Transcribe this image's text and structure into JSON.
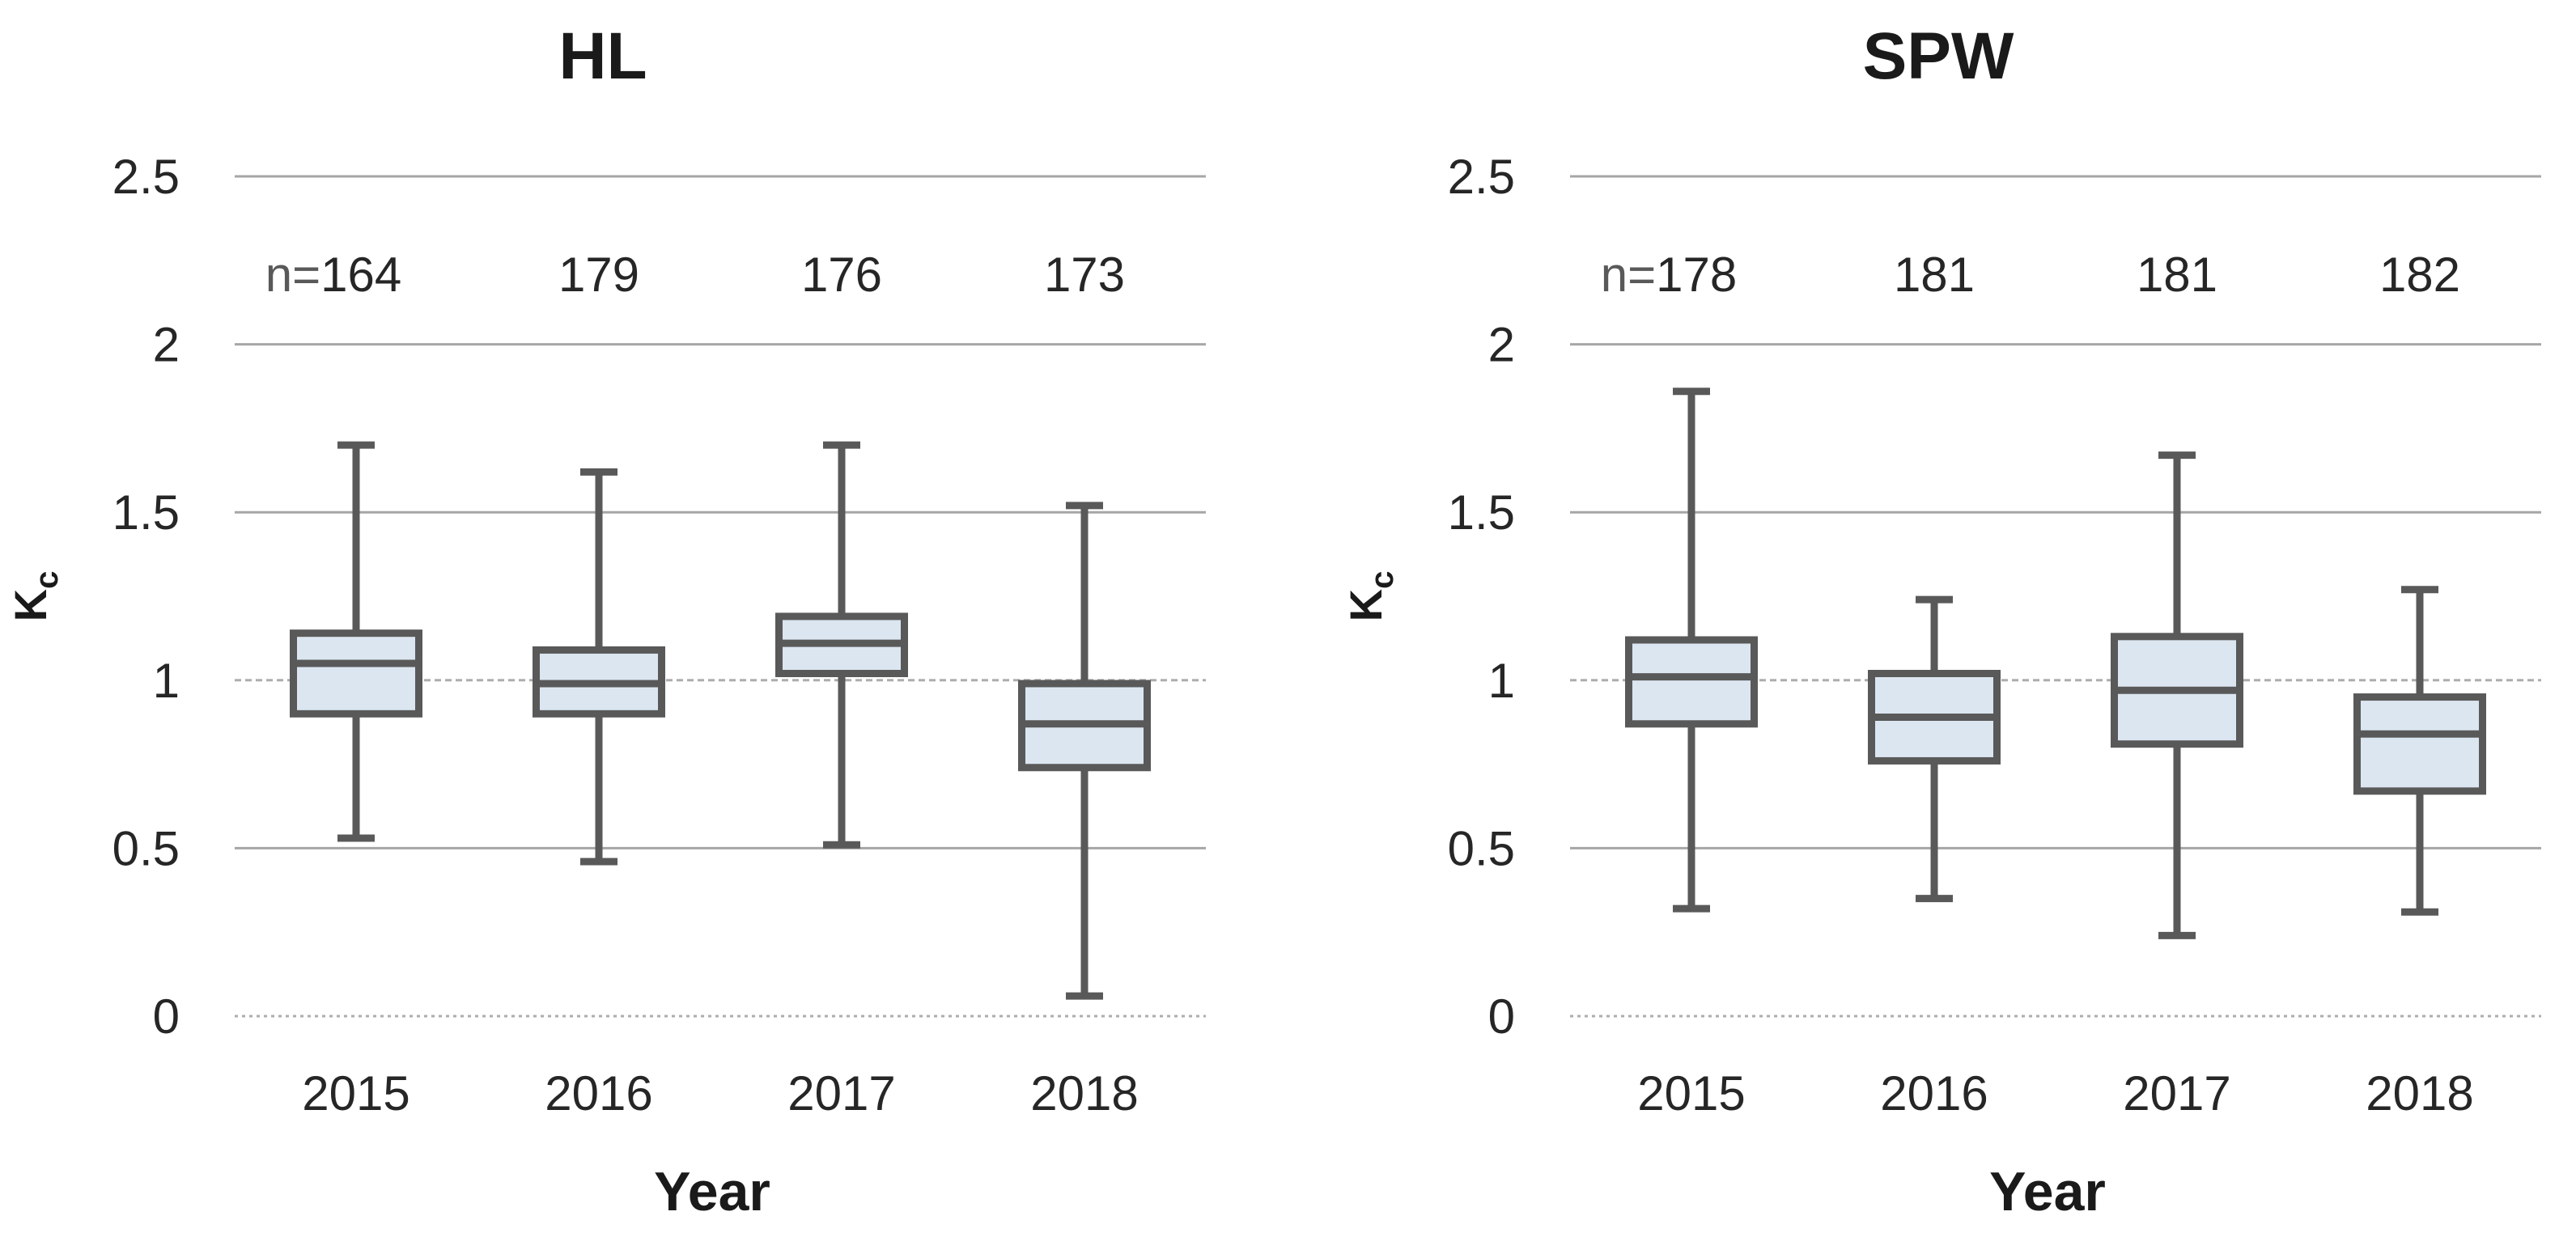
{
  "figure": {
    "background": "#ffffff"
  },
  "colors": {
    "box_fill": "#dce6f1",
    "box_border": "#595959",
    "whisker": "#595959",
    "grid_solid": "#a6a6a6",
    "grid_dotted": "#adadad",
    "tick_text": "#262626",
    "title_text": "#1a1a1a",
    "n_prefix_color": "#595959",
    "n_number_color": "#262626"
  },
  "chart_data": [
    {
      "type": "boxplot",
      "title": "HL",
      "xlabel": "Year",
      "ylabel": "K",
      "ylabel_subscript": "c",
      "categories": [
        "2015",
        "2016",
        "2017",
        "2018"
      ],
      "n_prefix": "n=",
      "n_values": [
        "164",
        "179",
        "176",
        "173"
      ],
      "ylim": [
        0,
        2.5
      ],
      "ytick_values": [
        2.5,
        2,
        1.5,
        1,
        0.5,
        0
      ],
      "ytick_labels": [
        "2.5",
        "2",
        "1.5",
        "1",
        "0.5",
        "0"
      ],
      "grid": true,
      "dotted_gridlines": [
        1,
        0
      ],
      "legend": "none",
      "boxes": [
        {
          "category": "2015",
          "whisker_low": 0.53,
          "q1": 0.9,
          "median": 1.05,
          "q3": 1.14,
          "whisker_high": 1.7
        },
        {
          "category": "2016",
          "whisker_low": 0.46,
          "q1": 0.9,
          "median": 0.99,
          "q3": 1.09,
          "whisker_high": 1.62
        },
        {
          "category": "2017",
          "whisker_low": 0.51,
          "q1": 1.02,
          "median": 1.11,
          "q3": 1.19,
          "whisker_high": 1.7
        },
        {
          "category": "2018",
          "whisker_low": 0.06,
          "q1": 0.74,
          "median": 0.87,
          "q3": 0.99,
          "whisker_high": 1.52
        }
      ]
    },
    {
      "type": "boxplot",
      "title": "SPW",
      "xlabel": "Year",
      "ylabel": "K",
      "ylabel_subscript": "c",
      "categories": [
        "2015",
        "2016",
        "2017",
        "2018"
      ],
      "n_prefix": "n=",
      "n_values": [
        "178",
        "181",
        "181",
        "182"
      ],
      "ylim": [
        0,
        2.5
      ],
      "ytick_values": [
        2.5,
        2,
        1.5,
        1,
        0.5,
        0
      ],
      "ytick_labels": [
        "2.5",
        "2",
        "1.5",
        "1",
        "0.5",
        "0"
      ],
      "grid": true,
      "dotted_gridlines": [
        1,
        0
      ],
      "legend": "none",
      "boxes": [
        {
          "category": "2015",
          "whisker_low": 0.32,
          "q1": 0.87,
          "median": 1.01,
          "q3": 1.12,
          "whisker_high": 1.86
        },
        {
          "category": "2016",
          "whisker_low": 0.35,
          "q1": 0.76,
          "median": 0.89,
          "q3": 1.02,
          "whisker_high": 1.24
        },
        {
          "category": "2017",
          "whisker_low": 0.24,
          "q1": 0.81,
          "median": 0.97,
          "q3": 1.13,
          "whisker_high": 1.67
        },
        {
          "category": "2018",
          "whisker_low": 0.31,
          "q1": 0.67,
          "median": 0.84,
          "q3": 0.95,
          "whisker_high": 1.27
        }
      ]
    }
  ]
}
